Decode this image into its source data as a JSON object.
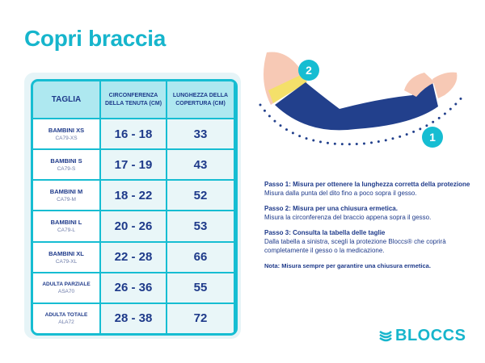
{
  "title": "Copri braccia",
  "table": {
    "headers": [
      "TAGLIA",
      "CIRCONFERENZA DELLA TENUTA (CM)",
      "LUNGHEZZA DELLA COPERTURA (CM)"
    ],
    "rows": [
      {
        "name": "BAMBINI XS",
        "code": "CA79-XS",
        "circ": "16 - 18",
        "len": "33"
      },
      {
        "name": "BAMBINI S",
        "code": "CA79-S",
        "circ": "17 - 19",
        "len": "43"
      },
      {
        "name": "BAMBINI M",
        "code": "CA79-M",
        "circ": "18 - 22",
        "len": "52"
      },
      {
        "name": "BAMBINI L",
        "code": "CA79-L",
        "circ": "20 - 26",
        "len": "53"
      },
      {
        "name": "BAMBINI XL",
        "code": "CA79-XL",
        "circ": "22 - 28",
        "len": "66"
      },
      {
        "name": "ADULTA PARZIALE",
        "code": "ASA70",
        "circ": "26 - 36",
        "len": "55"
      },
      {
        "name": "ADULTA TOTALE",
        "code": "ALA72",
        "circ": "28 - 38",
        "len": "72"
      }
    ]
  },
  "illustration": {
    "badge1": "1",
    "badge2": "2"
  },
  "steps": [
    {
      "title": "Passo 1: Misura per ottenere la lunghezza corretta della protezione",
      "text": "Misura dalla punta del dito fino a poco sopra il gesso."
    },
    {
      "title": "Passo 2: Misura per una chiusura ermetica.",
      "text": "Misura la circonferenza del braccio appena sopra il gesso."
    },
    {
      "title": "Passo 3: Consulta la tabella delle taglie",
      "text": "Dalla tabella a sinistra, scegli la protezione Bloccs® che coprirà completamente il gesso o la medicazione."
    }
  ],
  "note": "Nota: Misura sempre per garantire una chiusura ermetica.",
  "logo": "BLOCCS",
  "colors": {
    "accent": "#16b5cc",
    "navy": "#1e3a8a"
  }
}
